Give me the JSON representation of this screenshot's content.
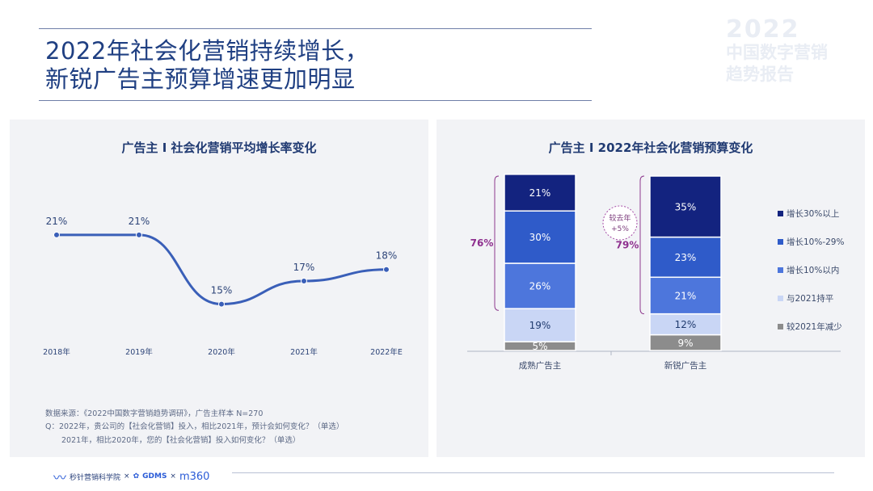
{
  "header": {
    "title_line1": "2022年社会化营销持续增长，",
    "title_line2": "新锐广告主预算增速更加明显",
    "brand_year": "2022",
    "brand_text1": "中国数字营销",
    "brand_text2": "趋势报告"
  },
  "left_panel": {
    "title": "广告主 I 社会化营销平均增长率变化",
    "source": "数据来源：《2022中国数字营销趋势调研》，广告主样本 N=270",
    "question1": "Q：2022年，贵公司的【社会化营销】投入，相比2021年，预计会如何变化？（单选）",
    "question2": "2021年，相比2020年，您的【社会化营销】投入如何变化？（单选）"
  },
  "right_panel": {
    "title": "广告主 I 2022年社会化营销预算变化",
    "bracket_mature": "76%",
    "bracket_new": "79%",
    "bubble_line1": "较去年",
    "bubble_line2": "+5%"
  },
  "footer": {
    "logo1": "秒针营销科学院",
    "sep1": "×",
    "logo2": "GDMS",
    "sep2": "×",
    "logo3": "m360"
  },
  "colors": {
    "s1": "#13237f",
    "s2": "#2f5bc9",
    "s3": "#4d76dc",
    "s4": "#c9d6f5",
    "s5": "#8c8c8c",
    "line": "#3a5fb8"
  },
  "chart_data": [
    {
      "type": "line",
      "title": "广告主 I 社会化营销平均增长率变化",
      "x": [
        "2018年",
        "2019年",
        "2020年",
        "2021年",
        "2022年E"
      ],
      "values": [
        21,
        21,
        15,
        17,
        18
      ],
      "labels": [
        "21%",
        "21%",
        "15%",
        "17%",
        "18%"
      ],
      "ylim": [
        10,
        24
      ],
      "note": ""
    },
    {
      "type": "bar",
      "stacked": true,
      "title": "广告主 I 2022年社会化营销预算变化",
      "categories": [
        "成熟广告主",
        "新锐广告主"
      ],
      "series": [
        {
          "name": "增长30%以上",
          "values": [
            21,
            35
          ]
        },
        {
          "name": "增长10%-29%",
          "values": [
            30,
            23
          ]
        },
        {
          "name": "增长10%以内",
          "values": [
            26,
            21
          ]
        },
        {
          "name": "与2021持平",
          "values": [
            19,
            12
          ]
        },
        {
          "name": "较2021年减少",
          "values": [
            5,
            9
          ]
        }
      ],
      "ylim": [
        0,
        100
      ]
    }
  ]
}
